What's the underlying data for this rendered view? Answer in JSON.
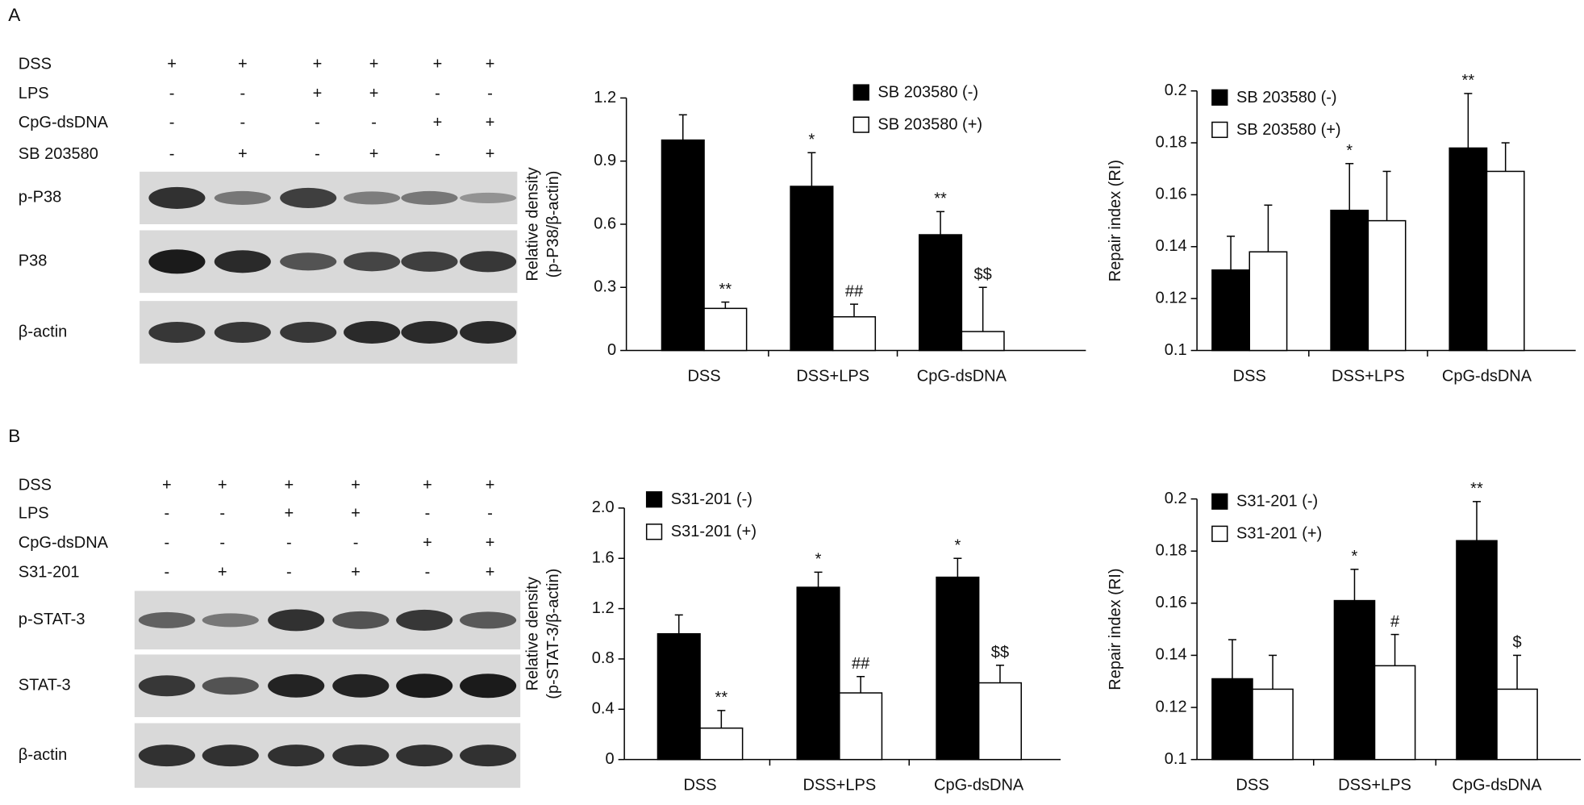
{
  "panel_labels": [
    "A",
    "B"
  ],
  "blots": [
    {
      "treatments": [
        {
          "name": "DSS",
          "signs": [
            "+",
            "+",
            "+",
            "+",
            "+",
            "+"
          ]
        },
        {
          "name": "LPS",
          "signs": [
            "-",
            "-",
            "+",
            "+",
            "-",
            "-"
          ]
        },
        {
          "name": "CpG-dsDNA",
          "signs": [
            "-",
            "-",
            "-",
            "-",
            "+",
            "+"
          ]
        },
        {
          "name": "SB 203580",
          "signs": [
            "-",
            "+",
            "-",
            "+",
            "-",
            "+"
          ]
        }
      ],
      "bands": [
        "p-P38",
        "P38",
        "β-actin"
      ]
    },
    {
      "treatments": [
        {
          "name": "DSS",
          "signs": [
            "+",
            "+",
            "+",
            "+",
            "+",
            "+"
          ]
        },
        {
          "name": "LPS",
          "signs": [
            "-",
            "-",
            "+",
            "+",
            "-",
            "-"
          ]
        },
        {
          "name": "CpG-dsDNA",
          "signs": [
            "-",
            "-",
            "-",
            "-",
            "+",
            "+"
          ]
        },
        {
          "name": "S31-201",
          "signs": [
            "-",
            "+",
            "-",
            "+",
            "-",
            "+"
          ]
        }
      ],
      "bands": [
        "p-STAT-3",
        "STAT-3",
        "β-actin"
      ]
    }
  ],
  "chart_data": [
    {
      "type": "bar",
      "ylabel": [
        "Relative density",
        "(p-P38/β-actin)"
      ],
      "categories": [
        "DSS",
        "DSS+LPS",
        "CpG-dsDNA"
      ],
      "ylim": [
        0,
        1.2
      ],
      "yticks": [
        0,
        0.3,
        0.6,
        0.9,
        1.2
      ],
      "series": [
        {
          "name": "SB 203580 (-)",
          "color": "#000000",
          "values": [
            1.0,
            0.78,
            0.55
          ],
          "errors": [
            0.12,
            0.16,
            0.11
          ],
          "annotations": [
            null,
            "*",
            "**"
          ]
        },
        {
          "name": "SB 203580 (+)",
          "color": "#ffffff",
          "values": [
            0.2,
            0.16,
            0.09
          ],
          "errors": [
            0.03,
            0.06,
            0.21
          ],
          "annotations": [
            "**",
            "##",
            "$$"
          ]
        }
      ]
    },
    {
      "type": "bar",
      "ylabel": [
        "Repair index (RI)"
      ],
      "categories": [
        "DSS",
        "DSS+LPS",
        "CpG-dsDNA"
      ],
      "ylim": [
        0.1,
        0.2
      ],
      "yticks": [
        0.1,
        0.12,
        0.14,
        0.16,
        0.18,
        0.2
      ],
      "series": [
        {
          "name": "SB 203580 (-)",
          "color": "#000000",
          "values": [
            0.131,
            0.154,
            0.178
          ],
          "errors": [
            0.013,
            0.018,
            0.021
          ],
          "annotations": [
            null,
            "*",
            "**"
          ]
        },
        {
          "name": "SB 203580 (+)",
          "color": "#ffffff",
          "values": [
            0.138,
            0.15,
            0.169
          ],
          "errors": [
            0.018,
            0.019,
            0.011
          ],
          "annotations": [
            null,
            null,
            null
          ]
        }
      ]
    },
    {
      "type": "bar",
      "ylabel": [
        "Relative density",
        "(p-STAT-3/β-actin)"
      ],
      "categories": [
        "DSS",
        "DSS+LPS",
        "CpG-dsDNA"
      ],
      "ylim": [
        0,
        2
      ],
      "yticks": [
        0,
        0.4,
        0.8,
        1.2,
        1.6,
        {
          "value": 2,
          "label": "2.0"
        }
      ],
      "series": [
        {
          "name": "S31-201 (-)",
          "color": "#000000",
          "values": [
            1.0,
            1.37,
            1.45
          ],
          "errors": [
            0.15,
            0.12,
            0.15
          ],
          "annotations": [
            null,
            "*",
            "*"
          ]
        },
        {
          "name": "S31-201 (+)",
          "color": "#ffffff",
          "values": [
            0.25,
            0.53,
            0.61
          ],
          "errors": [
            0.14,
            0.13,
            0.14
          ],
          "annotations": [
            "**",
            "##",
            "$$"
          ]
        }
      ]
    },
    {
      "type": "bar",
      "ylabel": [
        "Repair index (RI)"
      ],
      "categories": [
        "DSS",
        "DSS+LPS",
        "CpG-dsDNA"
      ],
      "ylim": [
        0.1,
        0.2
      ],
      "yticks": [
        0.1,
        0.12,
        0.14,
        0.16,
        0.18,
        0.2
      ],
      "series": [
        {
          "name": "S31-201 (-)",
          "color": "#000000",
          "values": [
            0.131,
            0.161,
            0.184
          ],
          "errors": [
            0.015,
            0.012,
            0.015
          ],
          "annotations": [
            null,
            "*",
            "**"
          ]
        },
        {
          "name": "S31-201 (+)",
          "color": "#ffffff",
          "values": [
            0.127,
            0.136,
            0.127
          ],
          "errors": [
            0.013,
            0.012,
            0.013
          ],
          "annotations": [
            null,
            "#",
            "$"
          ]
        }
      ]
    }
  ]
}
